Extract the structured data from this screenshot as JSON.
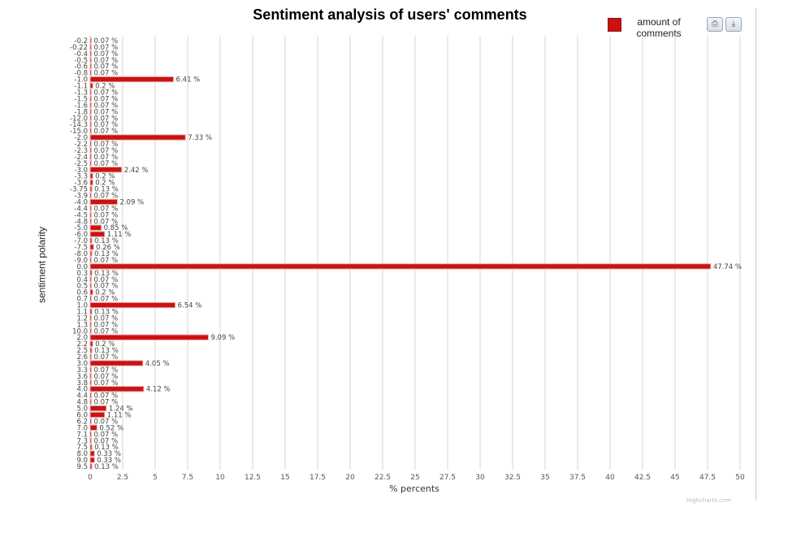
{
  "chart_data": {
    "type": "bar",
    "orientation": "horizontal",
    "title": "Sentiment analysis of users' comments",
    "ylabel": "sentiment polarity",
    "xlabel": "% percents",
    "xlim": [
      0,
      50
    ],
    "xticks": [
      "0",
      "2.5",
      "5",
      "7.5",
      "10",
      "12.5",
      "15",
      "17.5",
      "20",
      "22.5",
      "25",
      "27.5",
      "30",
      "32.5",
      "35",
      "37.5",
      "40",
      "42.5",
      "45",
      "47.5",
      "50"
    ],
    "grid": true,
    "legend": "top-right",
    "bar_color": "#cc1111",
    "series": [
      {
        "name": "amount of comments"
      }
    ],
    "categories": [
      "-0.2",
      "-0.22",
      "-0.4",
      "-0.5",
      "-0.6",
      "-0.8",
      "-1.0",
      "-1.1",
      "-1.3",
      "-1.5",
      "-1.6",
      "-1.8",
      "-12.0",
      "-14.3",
      "-15.0",
      "-2.0",
      "-2.2",
      "-2.3",
      "-2.4",
      "-2.5",
      "-3.0",
      "-3.3",
      "-3.6",
      "-3.75",
      "-3.9",
      "-4.0",
      "-4.4",
      "-4.5",
      "-4.8",
      "-5.0",
      "-6.0",
      "-7.0",
      "-7.5",
      "-8.0",
      "-9.0",
      "0.0",
      "0.3",
      "0.4",
      "0.5",
      "0.6",
      "0.7",
      "1.0",
      "1.1",
      "1.2",
      "1.3",
      "10.0",
      "2.0",
      "2.2",
      "2.5",
      "2.6",
      "3.0",
      "3.3",
      "3.6",
      "3.8",
      "4.0",
      "4.4",
      "4.8",
      "5.0",
      "6.0",
      "6.2",
      "7.0",
      "7.1",
      "7.3",
      "7.5",
      "8.0",
      "9.0",
      "9.5"
    ],
    "values": [
      0.07,
      0.07,
      0.07,
      0.07,
      0.07,
      0.07,
      6.41,
      0.2,
      0.07,
      0.07,
      0.07,
      0.07,
      0.07,
      0.07,
      0.07,
      7.33,
      0.07,
      0.07,
      0.07,
      0.07,
      2.42,
      0.2,
      0.2,
      0.13,
      0.07,
      2.09,
      0.07,
      0.07,
      0.07,
      0.85,
      1.11,
      0.13,
      0.26,
      0.13,
      0.07,
      47.74,
      0.13,
      0.07,
      0.07,
      0.2,
      0.07,
      6.54,
      0.13,
      0.07,
      0.07,
      0.07,
      9.09,
      0.2,
      0.13,
      0.07,
      4.05,
      0.07,
      0.07,
      0.07,
      4.12,
      0.07,
      0.07,
      1.24,
      1.11,
      0.07,
      0.52,
      0.07,
      0.07,
      0.13,
      0.33,
      0.33,
      0.13
    ],
    "data_labels": [
      "0.07 %",
      "0.07 %",
      "0.07 %",
      "0.07 %",
      "0.07 %",
      "0.07 %",
      "6.41 %",
      "0.2 %",
      "0.07 %",
      "0.07 %",
      "0.07 %",
      "0.07 %",
      "0.07 %",
      "0.07 %",
      "0.07 %",
      "7.33 %",
      "0.07 %",
      "0.07 %",
      "0.07 %",
      "0.07 %",
      "2.42 %",
      "0.2 %",
      "0.2 %",
      "0.13 %",
      "0.07 %",
      "2.09 %",
      "0.07 %",
      "0.07 %",
      "0.07 %",
      "0.85 %",
      "1.11 %",
      "0.13 %",
      "0.26 %",
      "0.13 %",
      "0.07 %",
      "47.74 %",
      "0.13 %",
      "0.07 %",
      "0.07 %",
      "0.2 %",
      "0.07 %",
      "6.54 %",
      "0.13 %",
      "0.07 %",
      "0.07 %",
      "0.07 %",
      "9.09 %",
      "0.2 %",
      "0.13 %",
      "0.07 %",
      "4.05 %",
      "0.07 %",
      "0.07 %",
      "0.07 %",
      "4.12 %",
      "0.07 %",
      "0.07 %",
      "1.24 %",
      "1.11 %",
      "0.07 %",
      "0.52 %",
      "0.07 %",
      "0.07 %",
      "0.13 %",
      "0.33 %",
      "0.33 %",
      "0.13 %"
    ]
  },
  "legend": {
    "label": "amount of\ncomments"
  },
  "toolbar": {
    "print_icon": "print-icon",
    "download_icon": "download-icon"
  },
  "credit": "Highcharts.com"
}
